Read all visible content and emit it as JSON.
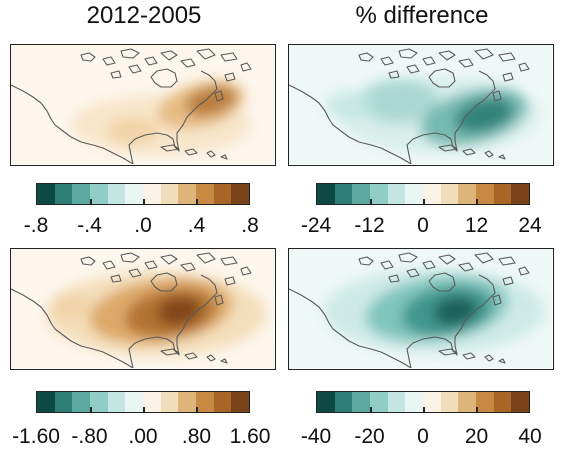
{
  "titles": {
    "left": "2012-2005",
    "right": "% difference"
  },
  "colorbar_colors": [
    "#0e4a44",
    "#2d7e77",
    "#5aa8a0",
    "#8fcdc5",
    "#c3e6e1",
    "#e7f5f3",
    "#fbf3e6",
    "#f1ddb9",
    "#ddb57a",
    "#c88a43",
    "#a86526",
    "#7a4218"
  ],
  "colorbars": {
    "top_left": [
      "-.8",
      "-.4",
      ".0",
      ".4",
      ".8"
    ],
    "top_right": [
      "-24",
      "-12",
      "0",
      "12",
      "24"
    ],
    "bottom_left": [
      "-1.60",
      "-.80",
      ".00",
      ".80",
      "1.60"
    ],
    "bottom_right": [
      "-40",
      "-20",
      "0",
      "20",
      "40"
    ]
  },
  "panels": {
    "top_left": {
      "scheme": "brown",
      "intensity": "moderate"
    },
    "top_right": {
      "scheme": "teal",
      "intensity": "moderate"
    },
    "bottom_left": {
      "scheme": "brown",
      "intensity": "strong"
    },
    "bottom_right": {
      "scheme": "teal",
      "intensity": "strong"
    }
  }
}
